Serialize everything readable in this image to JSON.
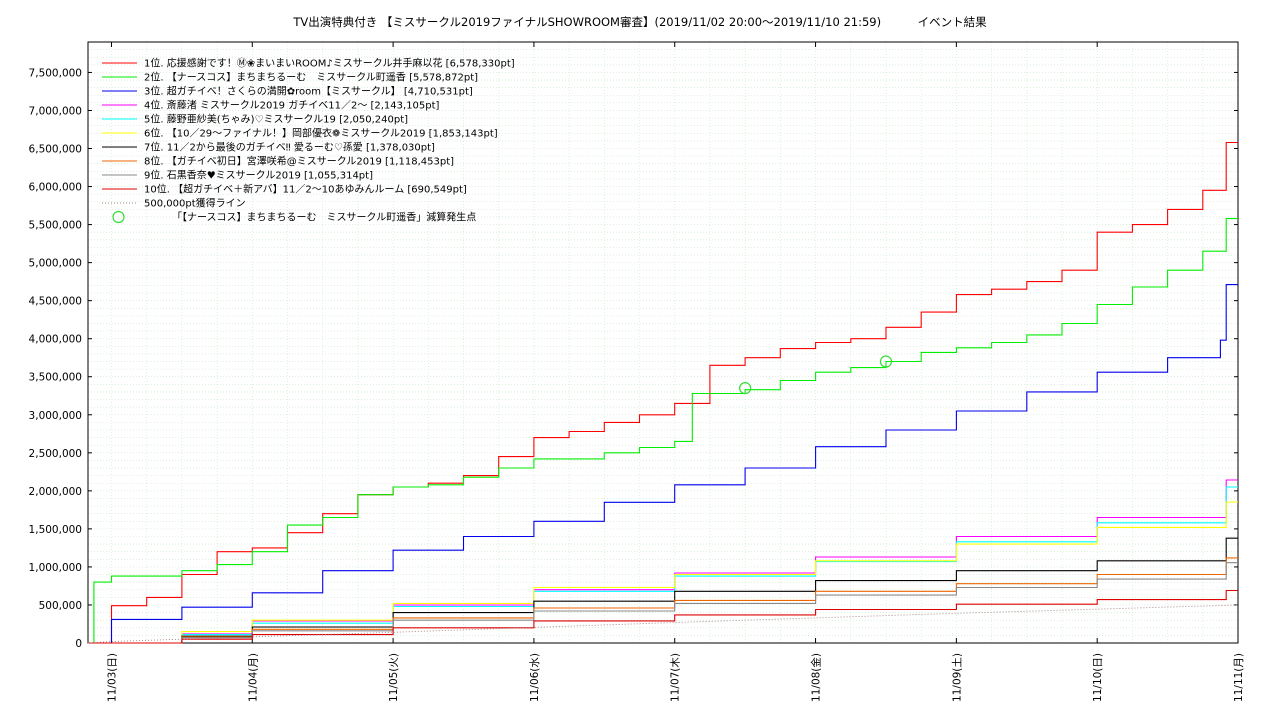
{
  "chart_data": {
    "type": "line",
    "title": "TV出演特典付き 【ミスサークル2019ファイナルSHOWROOM審査】(2019/11/02 20:00～2019/11/10 21:59)          イベント結果",
    "xlabel": "",
    "ylabel": "",
    "ylim": [
      0,
      7900000
    ],
    "xlim": [
      "2019-11-02 20:00",
      "2019-11-11 00:00"
    ],
    "grid": true,
    "legend_position": "top-left",
    "y_ticks": [
      "0",
      "500,000",
      "1,000,000",
      "1,500,000",
      "2,000,000",
      "2,500,000",
      "3,000,000",
      "3,500,000",
      "4,000,000",
      "4,500,000",
      "5,000,000",
      "5,500,000",
      "6,000,000",
      "6,500,000",
      "7,000,000",
      "7,500,000"
    ],
    "y_tick_values": [
      0,
      500000,
      1000000,
      1500000,
      2000000,
      2500000,
      3000000,
      3500000,
      4000000,
      4500000,
      5000000,
      5500000,
      6000000,
      6500000,
      7000000,
      7500000
    ],
    "x_ticks": [
      "11/03(日)",
      "11/04(月)",
      "11/05(火)",
      "11/06(水)",
      "11/07(木)",
      "11/08(金)",
      "11/09(土)",
      "11/10(日)",
      "11/11(月)"
    ],
    "x_tick_values": [
      "2019-11-03 00:00",
      "2019-11-04 00:00",
      "2019-11-05 00:00",
      "2019-11-06 00:00",
      "2019-11-07 00:00",
      "2019-11-08 00:00",
      "2019-11-09 00:00",
      "2019-11-10 00:00",
      "2019-11-11 00:00"
    ],
    "series": [
      {
        "name": " 1位. 応援感謝です！Ⓜ❀まいまいROOM♪ミスサークル井手麻以花 [6,578,330pt]",
        "color": "#ff0000",
        "x": [
          "2019-11-02 20:00",
          "2019-11-03 00:00",
          "2019-11-03 06:00",
          "2019-11-03 12:00",
          "2019-11-03 18:00",
          "2019-11-04 00:00",
          "2019-11-04 06:00",
          "2019-11-04 12:00",
          "2019-11-04 18:00",
          "2019-11-05 00:00",
          "2019-11-05 06:00",
          "2019-11-05 12:00",
          "2019-11-05 18:00",
          "2019-11-06 00:00",
          "2019-11-06 06:00",
          "2019-11-06 12:00",
          "2019-11-06 18:00",
          "2019-11-07 00:00",
          "2019-11-07 06:00",
          "2019-11-07 12:00",
          "2019-11-07 18:00",
          "2019-11-08 00:00",
          "2019-11-08 06:00",
          "2019-11-08 12:00",
          "2019-11-08 18:00",
          "2019-11-09 00:00",
          "2019-11-09 06:00",
          "2019-11-09 12:00",
          "2019-11-09 18:00",
          "2019-11-10 00:00",
          "2019-11-10 06:00",
          "2019-11-10 12:00",
          "2019-11-10 18:00",
          "2019-11-10 21:59",
          "2019-11-11 00:00"
        ],
        "values": [
          0,
          490000,
          600000,
          900000,
          1200000,
          1250000,
          1450000,
          1700000,
          1950000,
          2050000,
          2100000,
          2200000,
          2450000,
          2700000,
          2780000,
          2900000,
          3000000,
          3150000,
          3650000,
          3750000,
          3870000,
          3950000,
          4000000,
          4150000,
          4350000,
          4580000,
          4650000,
          4750000,
          4900000,
          5400000,
          5500000,
          5700000,
          5950000,
          6578330,
          6578330
        ]
      },
      {
        "name": "2位. 【ナースコス】まちまちるーむ　ミスサークル町遥香 [5,578,872pt]",
        "color": "#00ee00",
        "x": [
          "2019-11-02 20:00",
          "2019-11-02 21:00",
          "2019-11-03 00:00",
          "2019-11-03 12:00",
          "2019-11-03 18:00",
          "2019-11-04 00:00",
          "2019-11-04 06:00",
          "2019-11-04 12:00",
          "2019-11-04 18:00",
          "2019-11-05 00:00",
          "2019-11-05 06:00",
          "2019-11-05 12:00",
          "2019-11-05 18:00",
          "2019-11-06 00:00",
          "2019-11-06 12:00",
          "2019-11-06 18:00",
          "2019-11-07 00:00",
          "2019-11-07 03:00",
          "2019-11-07 12:00",
          "2019-11-07 18:00",
          "2019-11-08 00:00",
          "2019-11-08 06:00",
          "2019-11-08 12:00",
          "2019-11-08 18:00",
          "2019-11-09 00:00",
          "2019-11-09 06:00",
          "2019-11-09 12:00",
          "2019-11-09 18:00",
          "2019-11-10 00:00",
          "2019-11-10 06:00",
          "2019-11-10 12:00",
          "2019-11-10 18:00",
          "2019-11-10 21:59",
          "2019-11-11 00:00"
        ],
        "values": [
          0,
          800000,
          880000,
          950000,
          1030000,
          1200000,
          1550000,
          1650000,
          1950000,
          2050000,
          2080000,
          2180000,
          2300000,
          2420000,
          2500000,
          2570000,
          2650000,
          3280000,
          3330000,
          3450000,
          3560000,
          3620000,
          3700000,
          3820000,
          3880000,
          3950000,
          4050000,
          4200000,
          4450000,
          4680000,
          4900000,
          5150000,
          5578872,
          5578872
        ]
      },
      {
        "name": "3位. 超ガチイベ！さくらの満開✿room【ミスサークル】 [4,710,531pt]",
        "color": "#0000ee",
        "x": [
          "2019-11-02 20:00",
          "2019-11-03 00:00",
          "2019-11-03 12:00",
          "2019-11-04 00:00",
          "2019-11-04 12:00",
          "2019-11-05 00:00",
          "2019-11-05 12:00",
          "2019-11-06 00:00",
          "2019-11-06 12:00",
          "2019-11-07 00:00",
          "2019-11-07 12:00",
          "2019-11-08 00:00",
          "2019-11-08 12:00",
          "2019-11-09 00:00",
          "2019-11-09 12:00",
          "2019-11-10 00:00",
          "2019-11-10 12:00",
          "2019-11-10 21:00",
          "2019-11-10 21:59",
          "2019-11-11 00:00"
        ],
        "values": [
          0,
          310000,
          470000,
          660000,
          950000,
          1220000,
          1400000,
          1600000,
          1850000,
          2080000,
          2300000,
          2580000,
          2800000,
          3050000,
          3300000,
          3560000,
          3750000,
          3980000,
          4710531,
          4710531
        ]
      },
      {
        "name": "4位. 斎藤渚 ミスサークル2019 ガチイベ11／2～ [2,143,105pt]",
        "color": "#ff00ff",
        "x": [
          "2019-11-02 20:00",
          "2019-11-03 12:00",
          "2019-11-04 00:00",
          "2019-11-05 00:00",
          "2019-11-06 00:00",
          "2019-11-07 00:00",
          "2019-11-08 00:00",
          "2019-11-09 00:00",
          "2019-11-10 00:00",
          "2019-11-10 21:59",
          "2019-11-11 00:00"
        ],
        "values": [
          0,
          120000,
          290000,
          500000,
          700000,
          920000,
          1130000,
          1400000,
          1650000,
          2143105,
          2143105
        ]
      },
      {
        "name": "5位. 藤野亜紗美(ちゃみ)♡ミスサークル19 [2,050,240pt]",
        "color": "#00ffff",
        "x": [
          "2019-11-02 20:00",
          "2019-11-03 12:00",
          "2019-11-04 00:00",
          "2019-11-05 00:00",
          "2019-11-06 00:00",
          "2019-11-07 00:00",
          "2019-11-08 00:00",
          "2019-11-09 00:00",
          "2019-11-10 00:00",
          "2019-11-10 21:59",
          "2019-11-11 00:00"
        ],
        "values": [
          0,
          110000,
          260000,
          480000,
          680000,
          880000,
          1070000,
          1330000,
          1580000,
          2050240,
          2050240
        ]
      },
      {
        "name": "6位. 【10／29～ファイナル！】岡部優衣❁ミスサークル2019 [1,853,143pt]",
        "color": "#ffff00",
        "x": [
          "2019-11-02 20:00",
          "2019-11-03 12:00",
          "2019-11-04 00:00",
          "2019-11-05 00:00",
          "2019-11-06 00:00",
          "2019-11-07 00:00",
          "2019-11-08 00:00",
          "2019-11-09 00:00",
          "2019-11-10 00:00",
          "2019-11-10 21:59",
          "2019-11-11 00:00"
        ],
        "values": [
          0,
          150000,
          300000,
          520000,
          730000,
          900000,
          1080000,
          1300000,
          1520000,
          1853143,
          1853143
        ]
      },
      {
        "name": "7位. 11／2から最後のガチイベ‼ 愛るーむ♡孫愛 [1,378,030pt]",
        "color": "#000000",
        "x": [
          "2019-11-02 20:00",
          "2019-11-03 12:00",
          "2019-11-04 00:00",
          "2019-11-05 00:00",
          "2019-11-06 00:00",
          "2019-11-07 00:00",
          "2019-11-08 00:00",
          "2019-11-09 00:00",
          "2019-11-10 00:00",
          "2019-11-10 21:59",
          "2019-11-11 00:00"
        ],
        "values": [
          0,
          90000,
          210000,
          400000,
          550000,
          680000,
          820000,
          950000,
          1080000,
          1378030,
          1378030
        ]
      },
      {
        "name": "8位. 【ガチイベ初日】宮澤咲希@ミスサークル2019 [1,118,453pt]",
        "color": "#ee6600",
        "x": [
          "2019-11-02 20:00",
          "2019-11-03 12:00",
          "2019-11-04 00:00",
          "2019-11-05 00:00",
          "2019-11-06 00:00",
          "2019-11-07 00:00",
          "2019-11-08 00:00",
          "2019-11-09 00:00",
          "2019-11-10 00:00",
          "2019-11-10 21:59",
          "2019-11-11 00:00"
        ],
        "values": [
          0,
          80000,
          180000,
          330000,
          460000,
          560000,
          680000,
          780000,
          900000,
          1118453,
          1118453
        ]
      },
      {
        "name": "9位. 石黒香奈♥ミスサークル2019 [1,055,314pt]",
        "color": "#888888",
        "x": [
          "2019-11-02 20:00",
          "2019-11-03 12:00",
          "2019-11-04 00:00",
          "2019-11-05 00:00",
          "2019-11-06 00:00",
          "2019-11-07 00:00",
          "2019-11-08 00:00",
          "2019-11-09 00:00",
          "2019-11-10 00:00",
          "2019-11-10 21:59",
          "2019-11-11 00:00"
        ],
        "values": [
          0,
          70000,
          160000,
          300000,
          420000,
          520000,
          630000,
          730000,
          840000,
          1055314,
          1055314
        ]
      },
      {
        "name": "10位. 【超ガチイベ＋新アバ】11／2～10あゆみんルーム [690,549pt]",
        "color": "#dd0000",
        "x": [
          "2019-11-02 20:00",
          "2019-11-03 12:00",
          "2019-11-04 00:00",
          "2019-11-05 00:00",
          "2019-11-06 00:00",
          "2019-11-07 00:00",
          "2019-11-08 00:00",
          "2019-11-09 00:00",
          "2019-11-10 00:00",
          "2019-11-10 21:59",
          "2019-11-11 00:00"
        ],
        "values": [
          0,
          50000,
          110000,
          200000,
          290000,
          370000,
          440000,
          510000,
          570000,
          690549,
          690549
        ]
      },
      {
        "name": "500,000pt獲得ライン",
        "color": "#a08080",
        "dotted": true,
        "x": [
          "2019-11-02 20:00",
          "2019-11-03 00:00",
          "2019-11-05 00:00",
          "2019-11-07 00:00",
          "2019-11-09 00:00",
          "2019-11-11 00:00"
        ],
        "values": [
          0,
          20000,
          140000,
          270000,
          390000,
          500000
        ]
      }
    ],
    "markers": {
      "name": "「【ナースコス】まちまちるーむ　ミスサークル町遥香」減算発生点",
      "color": "#33dd33",
      "x": [
        "2019-11-07 12:00",
        "2019-11-08 12:00"
      ],
      "values": [
        3350000,
        3700000
      ]
    }
  }
}
